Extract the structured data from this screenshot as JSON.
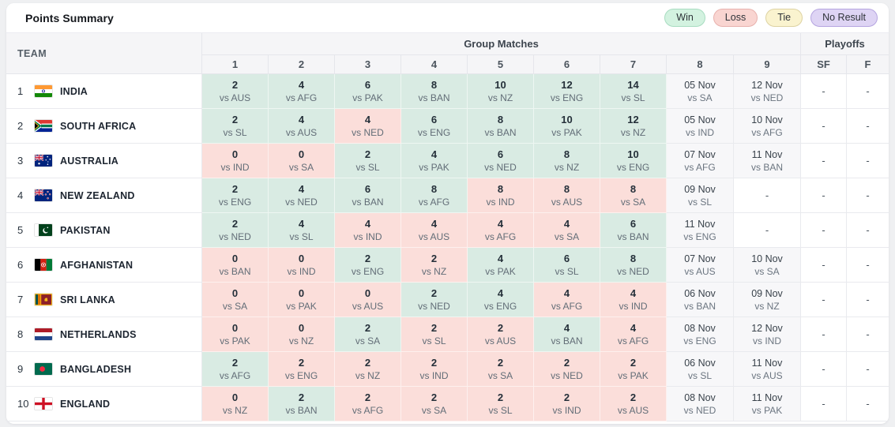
{
  "header": {
    "title": "Points Summary",
    "legend": [
      {
        "type": "win",
        "label": "Win"
      },
      {
        "type": "loss",
        "label": "Loss"
      },
      {
        "type": "tie",
        "label": "Tie"
      },
      {
        "type": "no_result",
        "label": "No Result"
      }
    ]
  },
  "colors": {
    "win": "#d9ebe3",
    "loss": "#fbdeda",
    "tie": "#faf3cf",
    "no_result": "#ded4f4",
    "upcoming": "#f7f7f9"
  },
  "table": {
    "team_header": "TEAM",
    "group_header": "Group Matches",
    "playoffs_header": "Playoffs",
    "match_columns": [
      "1",
      "2",
      "3",
      "4",
      "5",
      "6",
      "7",
      "8",
      "9"
    ],
    "playoff_columns": [
      "SF",
      "F"
    ],
    "rows": [
      {
        "rank": "1",
        "team": "INDIA",
        "flag": "india",
        "cells": [
          {
            "type": "win",
            "line1": "2",
            "line2": "vs AUS"
          },
          {
            "type": "win",
            "line1": "4",
            "line2": "vs AFG"
          },
          {
            "type": "win",
            "line1": "6",
            "line2": "vs PAK"
          },
          {
            "type": "win",
            "line1": "8",
            "line2": "vs BAN"
          },
          {
            "type": "win",
            "line1": "10",
            "line2": "vs NZ"
          },
          {
            "type": "win",
            "line1": "12",
            "line2": "vs ENG"
          },
          {
            "type": "win",
            "line1": "14",
            "line2": "vs SL"
          },
          {
            "type": "upcoming",
            "line1": "05 Nov",
            "line2": "vs SA"
          },
          {
            "type": "upcoming",
            "line1": "12 Nov",
            "line2": "vs NED"
          }
        ],
        "sf": "-",
        "f": "-"
      },
      {
        "rank": "2",
        "team": "SOUTH AFRICA",
        "flag": "south_africa",
        "cells": [
          {
            "type": "win",
            "line1": "2",
            "line2": "vs SL"
          },
          {
            "type": "win",
            "line1": "4",
            "line2": "vs AUS"
          },
          {
            "type": "loss",
            "line1": "4",
            "line2": "vs NED"
          },
          {
            "type": "win",
            "line1": "6",
            "line2": "vs ENG"
          },
          {
            "type": "win",
            "line1": "8",
            "line2": "vs BAN"
          },
          {
            "type": "win",
            "line1": "10",
            "line2": "vs PAK"
          },
          {
            "type": "win",
            "line1": "12",
            "line2": "vs NZ"
          },
          {
            "type": "upcoming",
            "line1": "05 Nov",
            "line2": "vs IND"
          },
          {
            "type": "upcoming",
            "line1": "10 Nov",
            "line2": "vs AFG"
          }
        ],
        "sf": "-",
        "f": "-"
      },
      {
        "rank": "3",
        "team": "AUSTRALIA",
        "flag": "australia",
        "cells": [
          {
            "type": "loss",
            "line1": "0",
            "line2": "vs IND"
          },
          {
            "type": "loss",
            "line1": "0",
            "line2": "vs SA"
          },
          {
            "type": "win",
            "line1": "2",
            "line2": "vs SL"
          },
          {
            "type": "win",
            "line1": "4",
            "line2": "vs PAK"
          },
          {
            "type": "win",
            "line1": "6",
            "line2": "vs NED"
          },
          {
            "type": "win",
            "line1": "8",
            "line2": "vs NZ"
          },
          {
            "type": "win",
            "line1": "10",
            "line2": "vs ENG"
          },
          {
            "type": "upcoming",
            "line1": "07 Nov",
            "line2": "vs AFG"
          },
          {
            "type": "upcoming",
            "line1": "11 Nov",
            "line2": "vs BAN"
          }
        ],
        "sf": "-",
        "f": "-"
      },
      {
        "rank": "4",
        "team": "NEW ZEALAND",
        "flag": "new_zealand",
        "cells": [
          {
            "type": "win",
            "line1": "2",
            "line2": "vs ENG"
          },
          {
            "type": "win",
            "line1": "4",
            "line2": "vs NED"
          },
          {
            "type": "win",
            "line1": "6",
            "line2": "vs BAN"
          },
          {
            "type": "win",
            "line1": "8",
            "line2": "vs AFG"
          },
          {
            "type": "loss",
            "line1": "8",
            "line2": "vs IND"
          },
          {
            "type": "loss",
            "line1": "8",
            "line2": "vs AUS"
          },
          {
            "type": "loss",
            "line1": "8",
            "line2": "vs SA"
          },
          {
            "type": "upcoming",
            "line1": "09 Nov",
            "line2": "vs SL"
          },
          {
            "type": "empty",
            "line1": "-",
            "line2": ""
          }
        ],
        "sf": "-",
        "f": "-"
      },
      {
        "rank": "5",
        "team": "PAKISTAN",
        "flag": "pakistan",
        "cells": [
          {
            "type": "win",
            "line1": "2",
            "line2": "vs NED"
          },
          {
            "type": "win",
            "line1": "4",
            "line2": "vs SL"
          },
          {
            "type": "loss",
            "line1": "4",
            "line2": "vs IND"
          },
          {
            "type": "loss",
            "line1": "4",
            "line2": "vs AUS"
          },
          {
            "type": "loss",
            "line1": "4",
            "line2": "vs AFG"
          },
          {
            "type": "loss",
            "line1": "4",
            "line2": "vs SA"
          },
          {
            "type": "win",
            "line1": "6",
            "line2": "vs BAN"
          },
          {
            "type": "upcoming",
            "line1": "11 Nov",
            "line2": "vs ENG"
          },
          {
            "type": "empty",
            "line1": "-",
            "line2": ""
          }
        ],
        "sf": "-",
        "f": "-"
      },
      {
        "rank": "6",
        "team": "AFGHANISTAN",
        "flag": "afghanistan",
        "cells": [
          {
            "type": "loss",
            "line1": "0",
            "line2": "vs BAN"
          },
          {
            "type": "loss",
            "line1": "0",
            "line2": "vs IND"
          },
          {
            "type": "win",
            "line1": "2",
            "line2": "vs ENG"
          },
          {
            "type": "loss",
            "line1": "2",
            "line2": "vs NZ"
          },
          {
            "type": "win",
            "line1": "4",
            "line2": "vs PAK"
          },
          {
            "type": "win",
            "line1": "6",
            "line2": "vs SL"
          },
          {
            "type": "win",
            "line1": "8",
            "line2": "vs NED"
          },
          {
            "type": "upcoming",
            "line1": "07 Nov",
            "line2": "vs AUS"
          },
          {
            "type": "upcoming",
            "line1": "10 Nov",
            "line2": "vs SA"
          }
        ],
        "sf": "-",
        "f": "-"
      },
      {
        "rank": "7",
        "team": "SRI LANKA",
        "flag": "sri_lanka",
        "cells": [
          {
            "type": "loss",
            "line1": "0",
            "line2": "vs SA"
          },
          {
            "type": "loss",
            "line1": "0",
            "line2": "vs PAK"
          },
          {
            "type": "loss",
            "line1": "0",
            "line2": "vs AUS"
          },
          {
            "type": "win",
            "line1": "2",
            "line2": "vs NED"
          },
          {
            "type": "win",
            "line1": "4",
            "line2": "vs ENG"
          },
          {
            "type": "loss",
            "line1": "4",
            "line2": "vs AFG"
          },
          {
            "type": "loss",
            "line1": "4",
            "line2": "vs IND"
          },
          {
            "type": "upcoming",
            "line1": "06 Nov",
            "line2": "vs BAN"
          },
          {
            "type": "upcoming",
            "line1": "09 Nov",
            "line2": "vs NZ"
          }
        ],
        "sf": "-",
        "f": "-"
      },
      {
        "rank": "8",
        "team": "NETHERLANDS",
        "flag": "netherlands",
        "cells": [
          {
            "type": "loss",
            "line1": "0",
            "line2": "vs PAK"
          },
          {
            "type": "loss",
            "line1": "0",
            "line2": "vs NZ"
          },
          {
            "type": "win",
            "line1": "2",
            "line2": "vs SA"
          },
          {
            "type": "loss",
            "line1": "2",
            "line2": "vs SL"
          },
          {
            "type": "loss",
            "line1": "2",
            "line2": "vs AUS"
          },
          {
            "type": "win",
            "line1": "4",
            "line2": "vs BAN"
          },
          {
            "type": "loss",
            "line1": "4",
            "line2": "vs AFG"
          },
          {
            "type": "upcoming",
            "line1": "08 Nov",
            "line2": "vs ENG"
          },
          {
            "type": "upcoming",
            "line1": "12 Nov",
            "line2": "vs IND"
          }
        ],
        "sf": "-",
        "f": "-"
      },
      {
        "rank": "9",
        "team": "BANGLADESH",
        "flag": "bangladesh",
        "cells": [
          {
            "type": "win",
            "line1": "2",
            "line2": "vs AFG"
          },
          {
            "type": "loss",
            "line1": "2",
            "line2": "vs ENG"
          },
          {
            "type": "loss",
            "line1": "2",
            "line2": "vs NZ"
          },
          {
            "type": "loss",
            "line1": "2",
            "line2": "vs IND"
          },
          {
            "type": "loss",
            "line1": "2",
            "line2": "vs SA"
          },
          {
            "type": "loss",
            "line1": "2",
            "line2": "vs NED"
          },
          {
            "type": "loss",
            "line1": "2",
            "line2": "vs PAK"
          },
          {
            "type": "upcoming",
            "line1": "06 Nov",
            "line2": "vs SL"
          },
          {
            "type": "upcoming",
            "line1": "11 Nov",
            "line2": "vs AUS"
          }
        ],
        "sf": "-",
        "f": "-"
      },
      {
        "rank": "10",
        "team": "ENGLAND",
        "flag": "england",
        "cells": [
          {
            "type": "loss",
            "line1": "0",
            "line2": "vs NZ"
          },
          {
            "type": "win",
            "line1": "2",
            "line2": "vs BAN"
          },
          {
            "type": "loss",
            "line1": "2",
            "line2": "vs AFG"
          },
          {
            "type": "loss",
            "line1": "2",
            "line2": "vs SA"
          },
          {
            "type": "loss",
            "line1": "2",
            "line2": "vs SL"
          },
          {
            "type": "loss",
            "line1": "2",
            "line2": "vs IND"
          },
          {
            "type": "loss",
            "line1": "2",
            "line2": "vs AUS"
          },
          {
            "type": "upcoming",
            "line1": "08 Nov",
            "line2": "vs NED"
          },
          {
            "type": "upcoming",
            "line1": "11 Nov",
            "line2": "vs PAK"
          }
        ],
        "sf": "-",
        "f": "-"
      }
    ]
  }
}
